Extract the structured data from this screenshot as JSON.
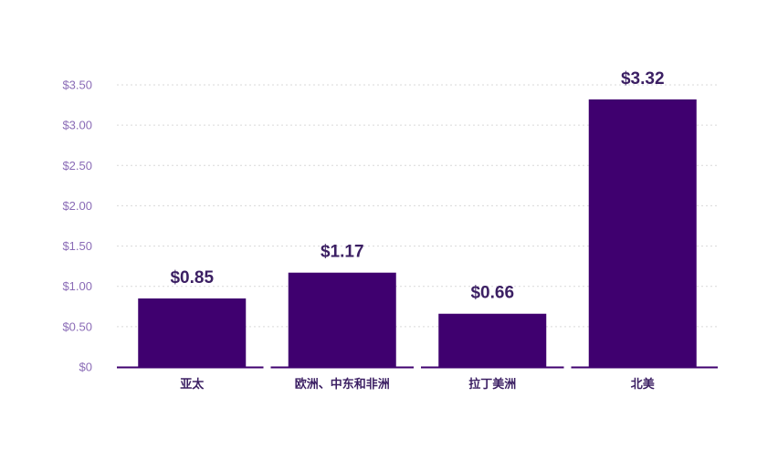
{
  "chart_data": {
    "type": "bar",
    "title": "",
    "xlabel": "",
    "ylabel": "",
    "categories": [
      "亚太",
      "欧洲、中东和非洲",
      "拉丁美洲",
      "北美"
    ],
    "values": [
      0.85,
      1.17,
      0.66,
      3.32
    ],
    "value_labels": [
      "$0.85",
      "$1.17",
      "$0.66",
      "$3.32"
    ],
    "ylim": [
      0,
      3.5
    ],
    "yticks": [
      0,
      0.5,
      1.0,
      1.5,
      2.0,
      2.5,
      3.0,
      3.5
    ],
    "ytick_labels": [
      "$0",
      "$0.50",
      "$1.00",
      "$1.50",
      "$2.00",
      "$2.50",
      "$3.00",
      "$3.50"
    ],
    "grid": true,
    "legend": "none",
    "colors": {
      "bar": "#3f006f",
      "axis": "#3f006f",
      "tick_text": "#8a6bb6",
      "label_text": "#3b1f63",
      "grid": "#d9d9d9"
    }
  }
}
